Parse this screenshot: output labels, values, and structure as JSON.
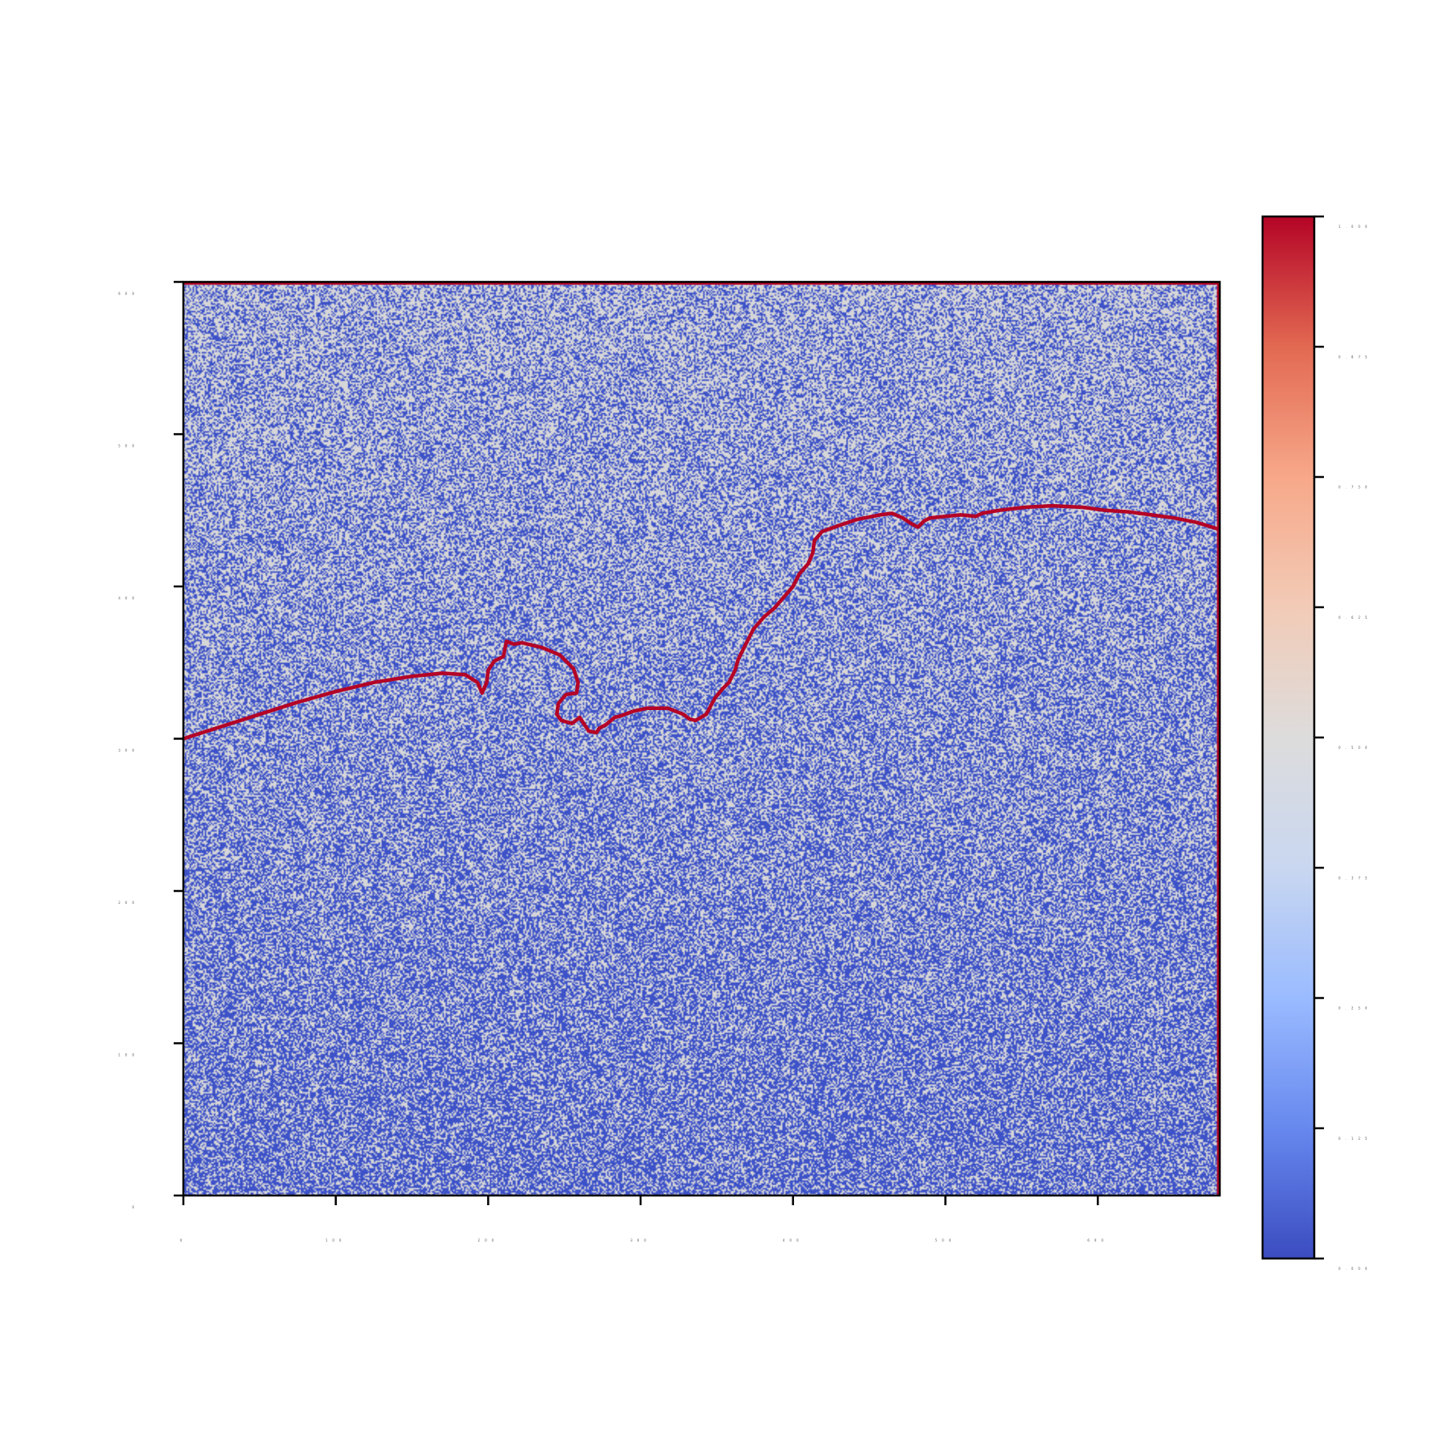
{
  "chart_data": {
    "type": "heatmap",
    "title": "",
    "xlabel": "",
    "ylabel": "",
    "xlim": [
      0,
      680
    ],
    "ylim": [
      0,
      600
    ],
    "x_ticks": [
      0,
      100,
      200,
      300,
      400,
      500,
      600
    ],
    "x_tick_labels": [
      "0",
      "100",
      "200",
      "300",
      "400",
      "500",
      "600"
    ],
    "y_ticks": [
      0,
      100,
      200,
      300,
      400,
      500,
      600
    ],
    "y_tick_labels": [
      "0",
      "100",
      "200",
      "300",
      "400",
      "500",
      "600"
    ],
    "grid": false,
    "cell_values": "binary noise field: each cell is either 0.0 (blue) or about 0.5 (light grey); grey share rises from roughly 35% near y=0 to roughly 60% near y=600",
    "low_value": 0.0,
    "high_value": 0.5,
    "colormap": "coolwarm",
    "colormap_stops": [
      "#3b4cc0",
      "#6788ee",
      "#9abbff",
      "#c9d7f0",
      "#dddcdc",
      "#f2cbb7",
      "#f7a889",
      "#e26952",
      "#b40426"
    ],
    "colorbar": {
      "range": [
        0.0,
        1.0
      ],
      "ticks": [
        0.0,
        0.125,
        0.25,
        0.375,
        0.5,
        0.625,
        0.75,
        0.875,
        1.0
      ],
      "tick_labels": [
        "0.000",
        "0.125",
        "0.250",
        "0.375",
        "0.500",
        "0.625",
        "0.750",
        "0.875",
        "1.000"
      ],
      "placement": "right"
    },
    "boundary_line": {
      "color": "#b40426",
      "value": 1.0,
      "points": [
        [
          0,
          300
        ],
        [
          25,
          308
        ],
        [
          50,
          316
        ],
        [
          75,
          324
        ],
        [
          100,
          331
        ],
        [
          125,
          337
        ],
        [
          150,
          341
        ],
        [
          170,
          343
        ],
        [
          185,
          342
        ],
        [
          193,
          337
        ],
        [
          196,
          330
        ],
        [
          199,
          337
        ],
        [
          200,
          345
        ],
        [
          204,
          351
        ],
        [
          210,
          354
        ],
        [
          212,
          364
        ],
        [
          217,
          362
        ],
        [
          222,
          363
        ],
        [
          235,
          360
        ],
        [
          247,
          355
        ],
        [
          256,
          346
        ],
        [
          259,
          337
        ],
        [
          258,
          330
        ],
        [
          251,
          329
        ],
        [
          246,
          323
        ],
        [
          245,
          316
        ],
        [
          248,
          312
        ],
        [
          255,
          310
        ],
        [
          260,
          314
        ],
        [
          264,
          308
        ],
        [
          266,
          305
        ],
        [
          271,
          304
        ],
        [
          273,
          307
        ],
        [
          277,
          309
        ],
        [
          283,
          314
        ],
        [
          287,
          315
        ],
        [
          295,
          318
        ],
        [
          304,
          320
        ],
        [
          318,
          320
        ],
        [
          328,
          316
        ],
        [
          332,
          313
        ],
        [
          336,
          312
        ],
        [
          343,
          316
        ],
        [
          349,
          327
        ],
        [
          354,
          333
        ],
        [
          358,
          337
        ],
        [
          362,
          345
        ],
        [
          364,
          352
        ],
        [
          368,
          360
        ],
        [
          374,
          372
        ],
        [
          381,
          380
        ],
        [
          388,
          386
        ],
        [
          394,
          393
        ],
        [
          400,
          400
        ],
        [
          404,
          408
        ],
        [
          410,
          415
        ],
        [
          413,
          422
        ],
        [
          414,
          430
        ],
        [
          419,
          436
        ],
        [
          430,
          440
        ],
        [
          442,
          444
        ],
        [
          457,
          447
        ],
        [
          465,
          448
        ],
        [
          472,
          445
        ],
        [
          478,
          441
        ],
        [
          482,
          439
        ],
        [
          486,
          443
        ],
        [
          490,
          445
        ],
        [
          500,
          446
        ],
        [
          510,
          447
        ],
        [
          520,
          446
        ],
        [
          524,
          448
        ],
        [
          535,
          450
        ],
        [
          552,
          452
        ],
        [
          570,
          453
        ],
        [
          590,
          452
        ],
        [
          605,
          450
        ],
        [
          620,
          449
        ],
        [
          635,
          447
        ],
        [
          650,
          445
        ],
        [
          665,
          442
        ],
        [
          678,
          438
        ]
      ]
    }
  }
}
